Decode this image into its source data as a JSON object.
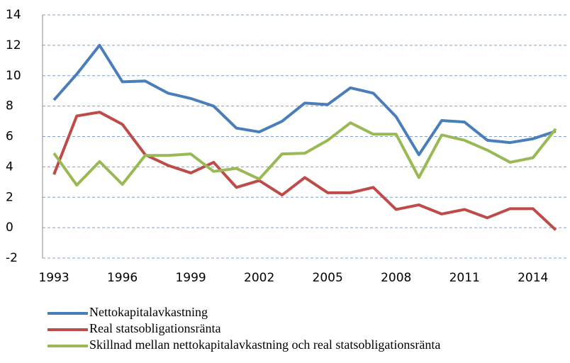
{
  "chart_data": {
    "type": "line",
    "x": [
      1993,
      1994,
      1995,
      1996,
      1997,
      1998,
      1999,
      2000,
      2001,
      2002,
      2003,
      2004,
      2005,
      2006,
      2007,
      2008,
      2009,
      2010,
      2011,
      2012,
      2013,
      2014,
      2015
    ],
    "series": [
      {
        "name": "Nettokapitalavkastning",
        "color": "#4a7ebb",
        "values": [
          8.4,
          10.1,
          12.0,
          9.6,
          9.65,
          8.85,
          8.5,
          8.0,
          6.55,
          6.3,
          7.0,
          8.2,
          8.1,
          9.2,
          8.85,
          7.3,
          4.8,
          7.05,
          6.95,
          5.75,
          5.6,
          5.85,
          6.35
        ]
      },
      {
        "name": "Real statsobligationsränta",
        "color": "#be4b48",
        "values": [
          3.5,
          7.35,
          7.6,
          6.8,
          4.8,
          4.1,
          3.6,
          4.3,
          2.65,
          3.1,
          2.15,
          3.3,
          2.3,
          2.3,
          2.65,
          1.2,
          1.5,
          0.9,
          1.2,
          0.65,
          1.25,
          1.25,
          -0.15
        ]
      },
      {
        "name": "Skillnad mellan nettokapitalavkastning och real statsobligationsränta",
        "color": "#98b954",
        "values": [
          4.9,
          2.8,
          4.35,
          2.85,
          4.75,
          4.75,
          4.85,
          3.7,
          3.9,
          3.2,
          4.85,
          4.9,
          5.75,
          6.9,
          6.15,
          6.15,
          3.3,
          6.1,
          5.75,
          5.1,
          4.3,
          4.6,
          6.5
        ]
      }
    ],
    "xlim": [
      1992.5,
      2015.5
    ],
    "xticks": [
      1993,
      1996,
      1999,
      2002,
      2005,
      2008,
      2011,
      2014
    ],
    "ylim": [
      -2,
      14
    ],
    "yticks": [
      -2,
      0,
      2,
      4,
      6,
      8,
      10,
      12,
      14
    ],
    "grid": true
  }
}
